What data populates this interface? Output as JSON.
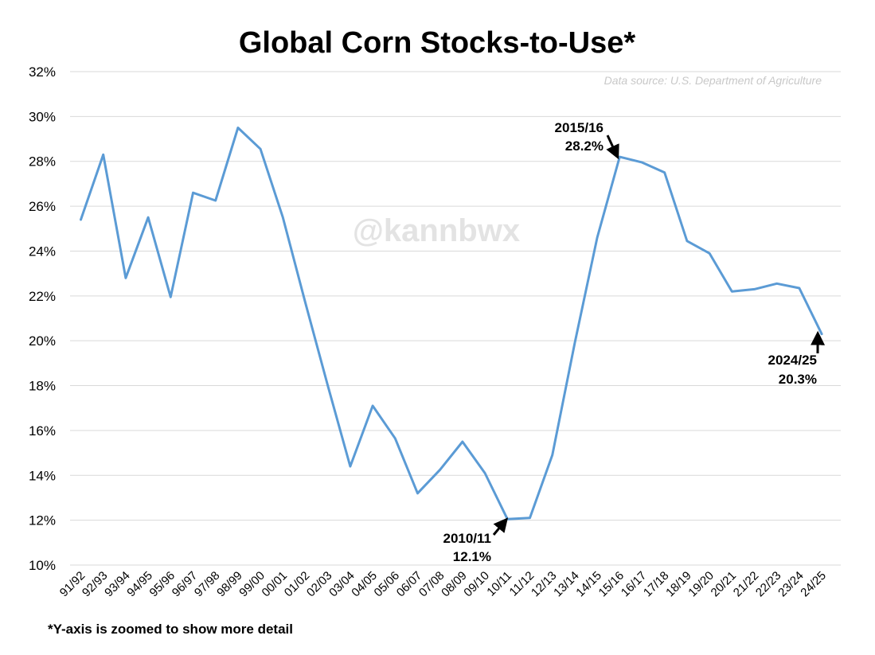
{
  "chart_data": {
    "type": "line",
    "title": "Global Corn Stocks-to-Use*",
    "source": "Data source: U.S. Department of Agriculture",
    "watermark": "@kannbwx",
    "footnote": "*Y-axis is zoomed to show more detail",
    "ylim": [
      10,
      32
    ],
    "y_ticks": [
      "10%",
      "12%",
      "14%",
      "16%",
      "18%",
      "20%",
      "22%",
      "24%",
      "26%",
      "28%",
      "30%",
      "32%"
    ],
    "grid": true,
    "line_color": "#5b9bd5",
    "categories": [
      "91/92",
      "92/93",
      "93/94",
      "94/95",
      "95/96",
      "96/97",
      "97/98",
      "98/99",
      "99/00",
      "00/01",
      "01/02",
      "02/03",
      "03/04",
      "04/05",
      "05/06",
      "06/07",
      "07/08",
      "08/09",
      "09/10",
      "10/11",
      "11/12",
      "12/13",
      "13/14",
      "14/15",
      "15/16",
      "16/17",
      "17/18",
      "18/19",
      "19/20",
      "20/21",
      "21/22",
      "22/23",
      "23/24",
      "24/25"
    ],
    "series": [
      {
        "values": [
          25.4,
          28.3,
          22.8,
          25.5,
          21.95,
          26.6,
          26.25,
          29.5,
          28.55,
          25.5,
          21.7,
          18.0,
          14.4,
          17.1,
          15.65,
          13.2,
          14.25,
          15.5,
          14.1,
          12.05,
          12.1,
          14.9,
          19.9,
          24.6,
          28.2,
          27.95,
          27.5,
          24.45,
          23.9,
          22.2,
          22.3,
          22.55,
          22.35,
          20.3
        ]
      }
    ],
    "annotations": [
      {
        "category": "15/16",
        "label": "2015/16",
        "value_label": "28.2%"
      },
      {
        "category": "10/11",
        "label": "2010/11",
        "value_label": "12.1%"
      },
      {
        "category": "24/25",
        "label": "2024/25",
        "value_label": "20.3%"
      }
    ]
  }
}
